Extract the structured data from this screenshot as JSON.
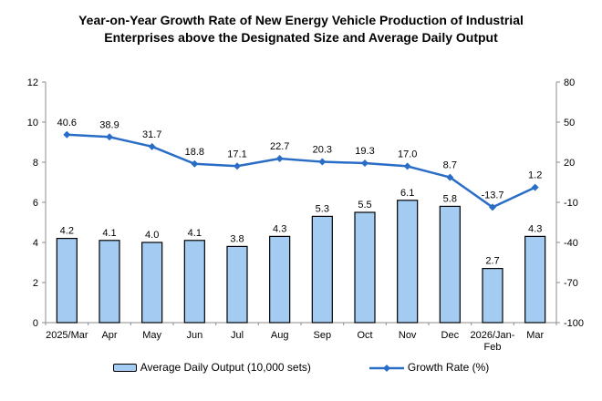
{
  "chart_data": {
    "type": "combo",
    "title": "Year-on-Year Growth Rate of New Energy Vehicle Production of Industrial Enterprises above the Designated Size and Average Daily Output",
    "categories": [
      "2025/Mar",
      "Apr",
      "May",
      "Jun",
      "Jul",
      "Aug",
      "Sep",
      "Oct",
      "Nov",
      "Dec",
      "2026/Jan-\nFeb",
      "Mar"
    ],
    "series": [
      {
        "name": "Average Daily Output (10,000 sets)",
        "type": "bar",
        "axis": "left",
        "values": [
          4.2,
          4.1,
          4.0,
          4.1,
          3.8,
          4.3,
          5.3,
          5.5,
          6.1,
          5.8,
          2.7,
          4.3
        ],
        "color": "#A4CCF3",
        "border_color": "#000000"
      },
      {
        "name": "Growth Rate (%)",
        "type": "line",
        "axis": "right",
        "values": [
          40.6,
          38.9,
          31.7,
          18.8,
          17.1,
          22.7,
          20.3,
          19.3,
          17.0,
          8.7,
          -13.7,
          1.2
        ],
        "color": "#2A6DC6",
        "marker": "diamond"
      }
    ],
    "left_axis": {
      "min": 0,
      "max": 12,
      "ticks": [
        0,
        2,
        4,
        6,
        8,
        10,
        12
      ]
    },
    "right_axis": {
      "min": -100,
      "max": 80,
      "ticks": [
        -100,
        -70,
        -40,
        -10,
        20,
        50,
        80
      ]
    },
    "grid": false,
    "data_labels": true,
    "label_decimals": 1,
    "legend_position": "bottom"
  }
}
